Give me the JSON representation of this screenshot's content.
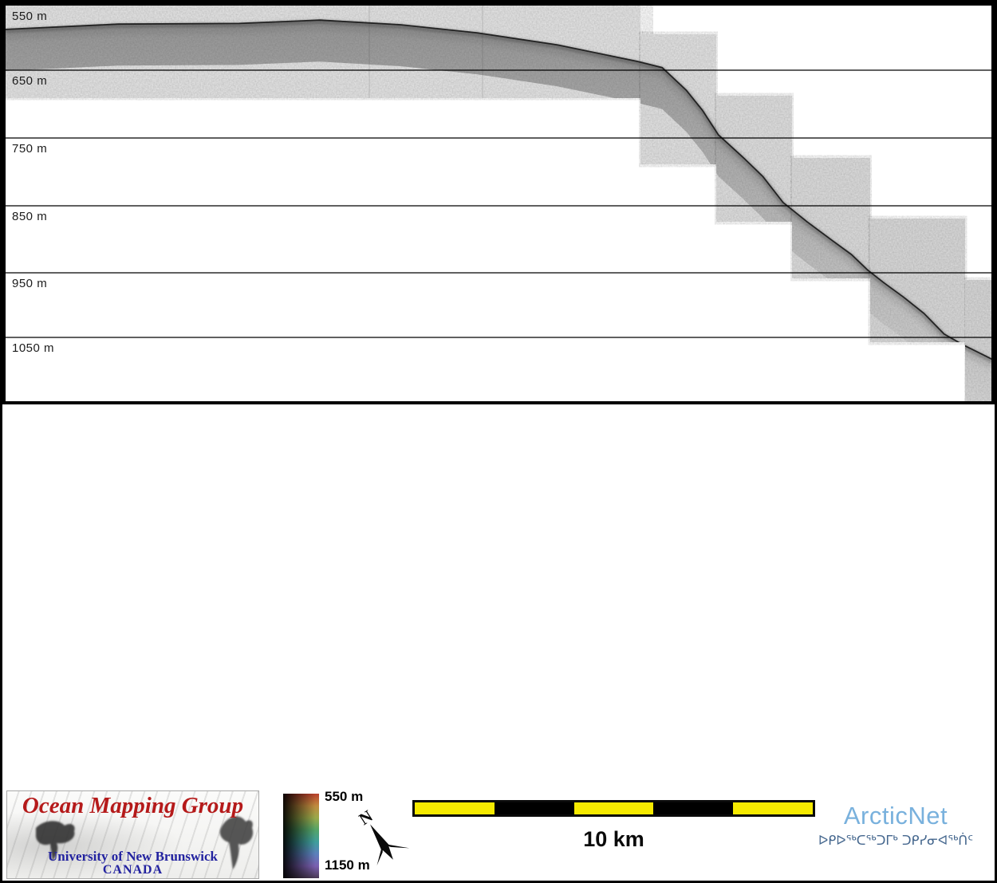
{
  "swath_maps": {
    "description_colors": {
      "depth_color_stops": [
        "#9e6248",
        "#b2805a",
        "#b59562",
        "#aaa45e",
        "#7fae66",
        "#5ead85",
        "#52a8a5",
        "#7e95c2",
        "#8d7cc4"
      ],
      "depth_stop_offsets": [
        0,
        0.1,
        0.24,
        0.38,
        0.52,
        0.64,
        0.76,
        0.89,
        1
      ],
      "backscatter_grays": [
        "#c6c6c6",
        "#a6a6a6"
      ]
    },
    "sun_icons": [
      {
        "name": "sun-illumination-down-arrow",
        "arrow_direction": "down",
        "sun_color": "#ffc926",
        "arrow_color": "#0a0a0a"
      },
      {
        "name": "sun-illumination-left-arrow",
        "arrow_direction": "left",
        "sun_color": "#ffc926",
        "arrow_color": "#0a0a0a"
      }
    ]
  },
  "profile": {
    "depth_labels": [
      "550 m",
      "650 m",
      "750 m",
      "850 m",
      "950 m",
      "1050 m"
    ]
  },
  "footer": {
    "omg_logo": {
      "title": "Ocean Mapping Group",
      "university": "University of New Brunswick",
      "country": "CANADA",
      "title_color": "#b51a1a",
      "text_color": "#2323a0"
    },
    "colorbar": {
      "top_label": "550 m",
      "bottom_label": "1150 m",
      "stops": [
        "#b8402c",
        "#c08a3e",
        "#9aa94a",
        "#53a468",
        "#3f9e9c",
        "#5b80bc",
        "#7a5fb0",
        "#4a3a55"
      ]
    },
    "north_arrow": {
      "label": "N"
    },
    "scalebar": {
      "label": "10 km",
      "segment_colors": [
        "#f6ea00",
        "#000000",
        "#f6ea00",
        "#000000",
        "#f6ea00"
      ]
    },
    "arcticnet": {
      "wordmark": "ArcticNet",
      "syllabics": "ᐅᑭᐅᖅᑕᖅᑐᒥᒃ ᑐᑭᓯᓂᐊᖅᑏᑦ",
      "wordmark_color": "#79b1dd",
      "syllabics_color": "#45678e"
    }
  },
  "chart_data": {
    "type": "line",
    "title": "",
    "xlabel": "",
    "ylabel": "",
    "ylim": [
      550,
      1150
    ],
    "gridline_depths_m": [
      550,
      650,
      750,
      850,
      950,
      1050
    ],
    "scalebar_km": 10,
    "x_km": [
      0,
      2.8,
      5.8,
      7.8,
      9.8,
      11.7,
      13.7,
      15.7,
      16.3,
      16.9,
      17.3,
      17.7,
      18.3,
      18.8,
      19.3,
      19.9,
      20.5,
      21.0,
      21.4,
      21.8,
      22.3,
      22.8,
      23.3,
      23.8,
      24.2,
      24.5
    ],
    "depth_m": [
      589,
      581,
      580,
      575,
      582,
      594,
      612,
      637,
      646,
      680,
      710,
      747,
      780,
      809,
      848,
      877,
      904,
      926,
      949,
      968,
      990,
      1014,
      1045,
      1062,
      1074,
      1083
    ]
  }
}
